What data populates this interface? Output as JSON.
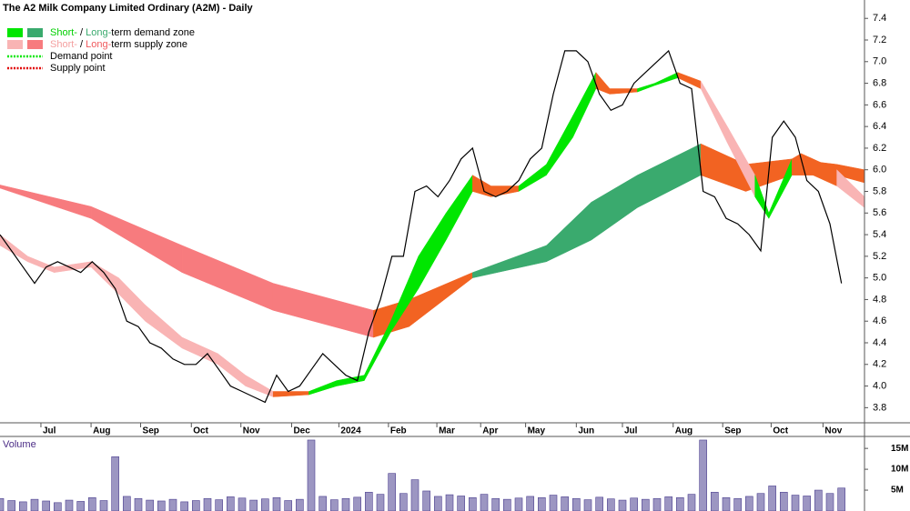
{
  "chart_data": {
    "type": "line",
    "title": "The A2 Milk Company Limited Ordinary (A2M) - Daily",
    "legend": [
      {
        "swatches": [
          "#00e600",
          "#3aaa6e"
        ],
        "pieces": [
          {
            "text": "Short-",
            "color": "#00d000"
          },
          {
            "text": " / "
          },
          {
            "text": "Long-",
            "color": "#3aaa6e"
          },
          {
            "text": "term demand zone"
          }
        ]
      },
      {
        "swatches": [
          "#f9b4b4",
          "#f77b7e"
        ],
        "pieces": [
          {
            "text": "Short-",
            "color": "#f4a0a0"
          },
          {
            "text": " / "
          },
          {
            "text": "Long-",
            "color": "#f05a5e"
          },
          {
            "text": "term supply zone"
          }
        ]
      },
      {
        "line": "#00e600",
        "pieces": [
          {
            "text": "Demand point"
          }
        ]
      },
      {
        "line": "#e00000",
        "pieces": [
          {
            "text": "Supply point"
          }
        ]
      }
    ],
    "x": [
      0,
      1,
      2,
      3,
      4,
      5,
      6,
      7,
      8,
      9,
      10,
      11,
      12,
      13,
      14,
      15,
      16,
      17,
      18,
      19,
      20,
      21,
      22,
      23,
      24,
      25,
      26,
      27,
      28,
      29,
      30,
      31,
      32,
      33,
      34,
      35,
      36,
      37,
      38,
      39,
      40,
      41,
      42,
      43,
      44,
      45,
      46,
      47,
      48,
      49,
      50,
      51,
      52,
      53,
      54,
      55,
      56,
      57,
      58,
      59,
      60,
      61,
      62,
      63,
      64,
      65,
      66,
      67,
      68,
      69,
      70,
      71,
      72,
      73
    ],
    "xlim": [
      0,
      75
    ],
    "xticks": [
      {
        "value": 3.55,
        "label": "Jul"
      },
      {
        "value": 7.9,
        "label": "Aug"
      },
      {
        "value": 12.2,
        "label": "Sep"
      },
      {
        "value": 16.6,
        "label": "Oct"
      },
      {
        "value": 20.9,
        "label": "Nov"
      },
      {
        "value": 25.3,
        "label": "Dec"
      },
      {
        "value": 29.4,
        "label": "2024"
      },
      {
        "value": 33.7,
        "label": "Feb"
      },
      {
        "value": 37.9,
        "label": "Mar"
      },
      {
        "value": 41.7,
        "label": "Apr"
      },
      {
        "value": 45.6,
        "label": "May"
      },
      {
        "value": 50.0,
        "label": "Jun"
      },
      {
        "value": 54.0,
        "label": "Jul"
      },
      {
        "value": 58.4,
        "label": "Aug"
      },
      {
        "value": 62.7,
        "label": "Sep"
      },
      {
        "value": 66.9,
        "label": "Oct"
      },
      {
        "value": 71.4,
        "label": "Nov"
      }
    ],
    "ylim": [
      3.66,
      7.57
    ],
    "yticks": [
      {
        "value": 3.8,
        "label": "3.8"
      },
      {
        "value": 4.0,
        "label": "4.0"
      },
      {
        "value": 4.2,
        "label": "4.2"
      },
      {
        "value": 4.4,
        "label": "4.4"
      },
      {
        "value": 4.6,
        "label": "4.6"
      },
      {
        "value": 4.8,
        "label": "4.8"
      },
      {
        "value": 5.0,
        "label": "5.0"
      },
      {
        "value": 5.2,
        "label": "5.2"
      },
      {
        "value": 5.4,
        "label": "5.4"
      },
      {
        "value": 5.6,
        "label": "5.6"
      },
      {
        "value": 5.8,
        "label": "5.8"
      },
      {
        "value": 6.0,
        "label": "6.0"
      },
      {
        "value": 6.2,
        "label": "6.2"
      },
      {
        "value": 6.4,
        "label": "6.4"
      },
      {
        "value": 6.6,
        "label": "6.6"
      },
      {
        "value": 6.8,
        "label": "6.8"
      },
      {
        "value": 7.0,
        "label": "7.0"
      },
      {
        "value": 7.2,
        "label": "7.2"
      },
      {
        "value": 7.4,
        "label": "7.4"
      }
    ],
    "close": {
      "color": "#000000",
      "values": [
        5.4,
        5.25,
        5.1,
        4.95,
        5.1,
        5.15,
        5.1,
        5.05,
        5.15,
        5.05,
        4.9,
        4.6,
        4.55,
        4.4,
        4.35,
        4.25,
        4.2,
        4.2,
        4.3,
        4.15,
        4.0,
        3.95,
        3.9,
        3.85,
        4.1,
        3.95,
        4.0,
        4.15,
        4.3,
        4.2,
        4.1,
        4.05,
        4.5,
        4.8,
        5.2,
        5.2,
        5.8,
        5.85,
        5.75,
        5.9,
        6.1,
        6.2,
        5.8,
        5.75,
        5.8,
        5.9,
        6.1,
        6.2,
        6.7,
        7.1,
        7.1,
        7.0,
        6.7,
        6.55,
        6.6,
        6.8,
        6.9,
        7.0,
        7.1,
        6.8,
        6.75,
        5.8,
        5.75,
        5.55,
        5.5,
        5.4,
        5.25,
        6.3,
        6.45,
        6.3,
        5.9,
        5.8,
        5.5,
        4.95
      ]
    },
    "bands": [
      {
        "x": [
          0,
          7.9,
          15.8,
          23.7,
          32.4,
          35.5,
          41.0,
          47.4,
          51.3,
          55.3,
          60.8,
          64.7,
          68.7,
          72.6,
          75
        ],
        "upper": [
          5.86,
          5.66,
          5.3,
          4.95,
          4.7,
          4.8,
          5.05,
          5.3,
          5.7,
          5.95,
          6.24,
          6.05,
          6.1,
          6.05,
          6.0
        ],
        "lower": [
          5.83,
          5.55,
          5.05,
          4.7,
          4.45,
          4.55,
          5.0,
          5.15,
          5.35,
          5.65,
          5.95,
          5.8,
          5.95,
          5.95,
          5.88
        ],
        "colors": [
          "#f77b7e",
          "#f77b7e",
          "#f77b7e",
          "#f77b7e",
          "#f26322",
          "#f26322",
          "#3aaa6e",
          "#3aaa6e",
          "#3aaa6e",
          "#3aaa6e",
          "#f26322",
          "#f26322",
          "#f26322",
          "#f26322"
        ]
      },
      {
        "x": [
          0,
          2.4,
          4.7,
          7.9,
          10.3,
          12.6,
          15.8,
          18.9,
          21.3,
          23.7,
          26.8,
          29.2,
          31.6,
          33.9,
          36.3,
          38.7,
          41.0,
          42.6,
          45.0,
          47.4,
          49.7,
          51.7,
          52.9,
          55.3,
          56.8,
          58.8,
          60.8,
          63.1,
          65.5,
          66.7,
          68.7,
          69.5,
          72.6,
          75.0
        ],
        "upper": [
          5.4,
          5.2,
          5.1,
          5.15,
          5.0,
          4.75,
          4.45,
          4.3,
          4.1,
          3.95,
          3.95,
          4.05,
          4.1,
          4.6,
          5.2,
          5.6,
          5.95,
          5.85,
          5.85,
          6.05,
          6.5,
          6.9,
          6.75,
          6.75,
          6.8,
          6.9,
          6.82,
          6.4,
          5.95,
          5.6,
          6.1,
          6.15,
          6.0,
          5.75
        ],
        "lower": [
          5.3,
          5.15,
          5.05,
          5.1,
          4.85,
          4.6,
          4.35,
          4.2,
          4.0,
          3.9,
          3.92,
          4.0,
          4.05,
          4.5,
          4.9,
          5.35,
          5.8,
          5.75,
          5.8,
          5.95,
          6.3,
          6.75,
          6.7,
          6.72,
          6.78,
          6.85,
          6.75,
          6.25,
          5.75,
          5.55,
          5.95,
          6.0,
          5.85,
          5.65
        ],
        "colors": [
          "#f9b4b4",
          "#f9b4b4",
          "#f9b4b4",
          "#f9b4b4",
          "#f9b4b4",
          "#f9b4b4",
          "#f9b4b4",
          "#f9b4b4",
          "#f9b4b4",
          "#f26322",
          "#00e600",
          "#00e600",
          "#00e600",
          "#00e600",
          "#00e600",
          "#00e600",
          "#f26322",
          "#f26322",
          "#00e600",
          "#00e600",
          "#00e600",
          "#f26322",
          "#f26322",
          "#00e600",
          "#00e600",
          "#f26322",
          "#f9b4b4",
          "#f9b4b4",
          "#00e600",
          "#00e600",
          "#f26322",
          "#f26322",
          "#f9b4b4"
        ]
      }
    ],
    "volume": {
      "label": "Volume",
      "color": "#4b3f8f",
      "ylim": [
        0,
        18300000
      ],
      "yticks": [
        {
          "value": 5000000,
          "label": "5M"
        },
        {
          "value": 10000000,
          "label": "10M"
        },
        {
          "value": 15000000,
          "label": "15M"
        }
      ],
      "values": [
        3000000,
        2500000,
        2200000,
        2800000,
        2400000,
        2000000,
        2600000,
        2300000,
        3200000,
        2500000,
        13000000,
        3500000,
        3000000,
        2600000,
        2400000,
        2800000,
        2200000,
        2500000,
        3000000,
        2700000,
        3400000,
        3100000,
        2600000,
        2900000,
        3200000,
        2500000,
        2800000,
        17000000,
        3500000,
        2700000,
        3000000,
        3300000,
        4500000,
        4000000,
        9000000,
        4200000,
        7500000,
        4800000,
        3500000,
        3900000,
        3600000,
        3200000,
        4000000,
        3000000,
        2800000,
        3100000,
        3500000,
        3200000,
        3800000,
        3400000,
        3000000,
        2700000,
        3300000,
        2900000,
        2600000,
        3100000,
        2800000,
        3000000,
        3400000,
        3200000,
        4000000,
        17000000,
        4500000,
        3200000,
        3000000,
        3500000,
        4200000,
        6000000,
        4500000,
        3800000,
        3600000,
        5000000,
        4200000,
        5500000
      ]
    }
  }
}
